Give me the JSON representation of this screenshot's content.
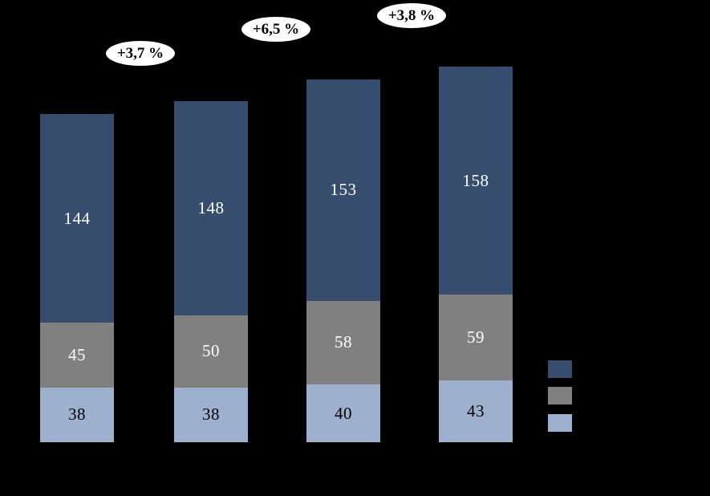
{
  "page": {
    "background_color": "#000000"
  },
  "chart_data": {
    "type": "bar",
    "stacked": true,
    "orientation": "vertical",
    "title": "",
    "categories": [
      "",
      "",
      "",
      ""
    ],
    "series": [
      {
        "name": "light-blue-segment",
        "color": "#9DB1CF",
        "label_color": "#000000",
        "values": [
          38,
          38,
          40,
          43
        ]
      },
      {
        "name": "gray-segment",
        "color": "#808080",
        "label_color": "#FFFFFF",
        "values": [
          45,
          50,
          58,
          59
        ]
      },
      {
        "name": "dark-blue-segment",
        "color": "#374D6E",
        "label_color": "#FFFFFF",
        "values": [
          144,
          148,
          153,
          158
        ]
      }
    ],
    "data_labels": {
      "visible": true,
      "placement": "center-of-segment"
    },
    "annotations": [
      {
        "label": "+3,7 %",
        "cx": 175,
        "cy": 66
      },
      {
        "label": "+6,5 %",
        "cx": 344,
        "cy": 36
      },
      {
        "label": "+3,8 %",
        "cx": 513,
        "cy": 19
      }
    ],
    "annotation_style": {
      "shape": "ellipse",
      "fill": "#FFFFFF",
      "text_color": "#000000"
    },
    "legend": {
      "position": "right",
      "labels_visible": false,
      "items": [
        {
          "name": "dark-blue-series",
          "color": "#374D6E"
        },
        {
          "name": "gray-series",
          "color": "#808080"
        },
        {
          "name": "light-blue-series",
          "color": "#9DB1CF"
        }
      ]
    },
    "axes": {
      "x_axis_visible": false,
      "y_axis_visible": false,
      "tick_labels_visible": false,
      "grid": false
    }
  }
}
